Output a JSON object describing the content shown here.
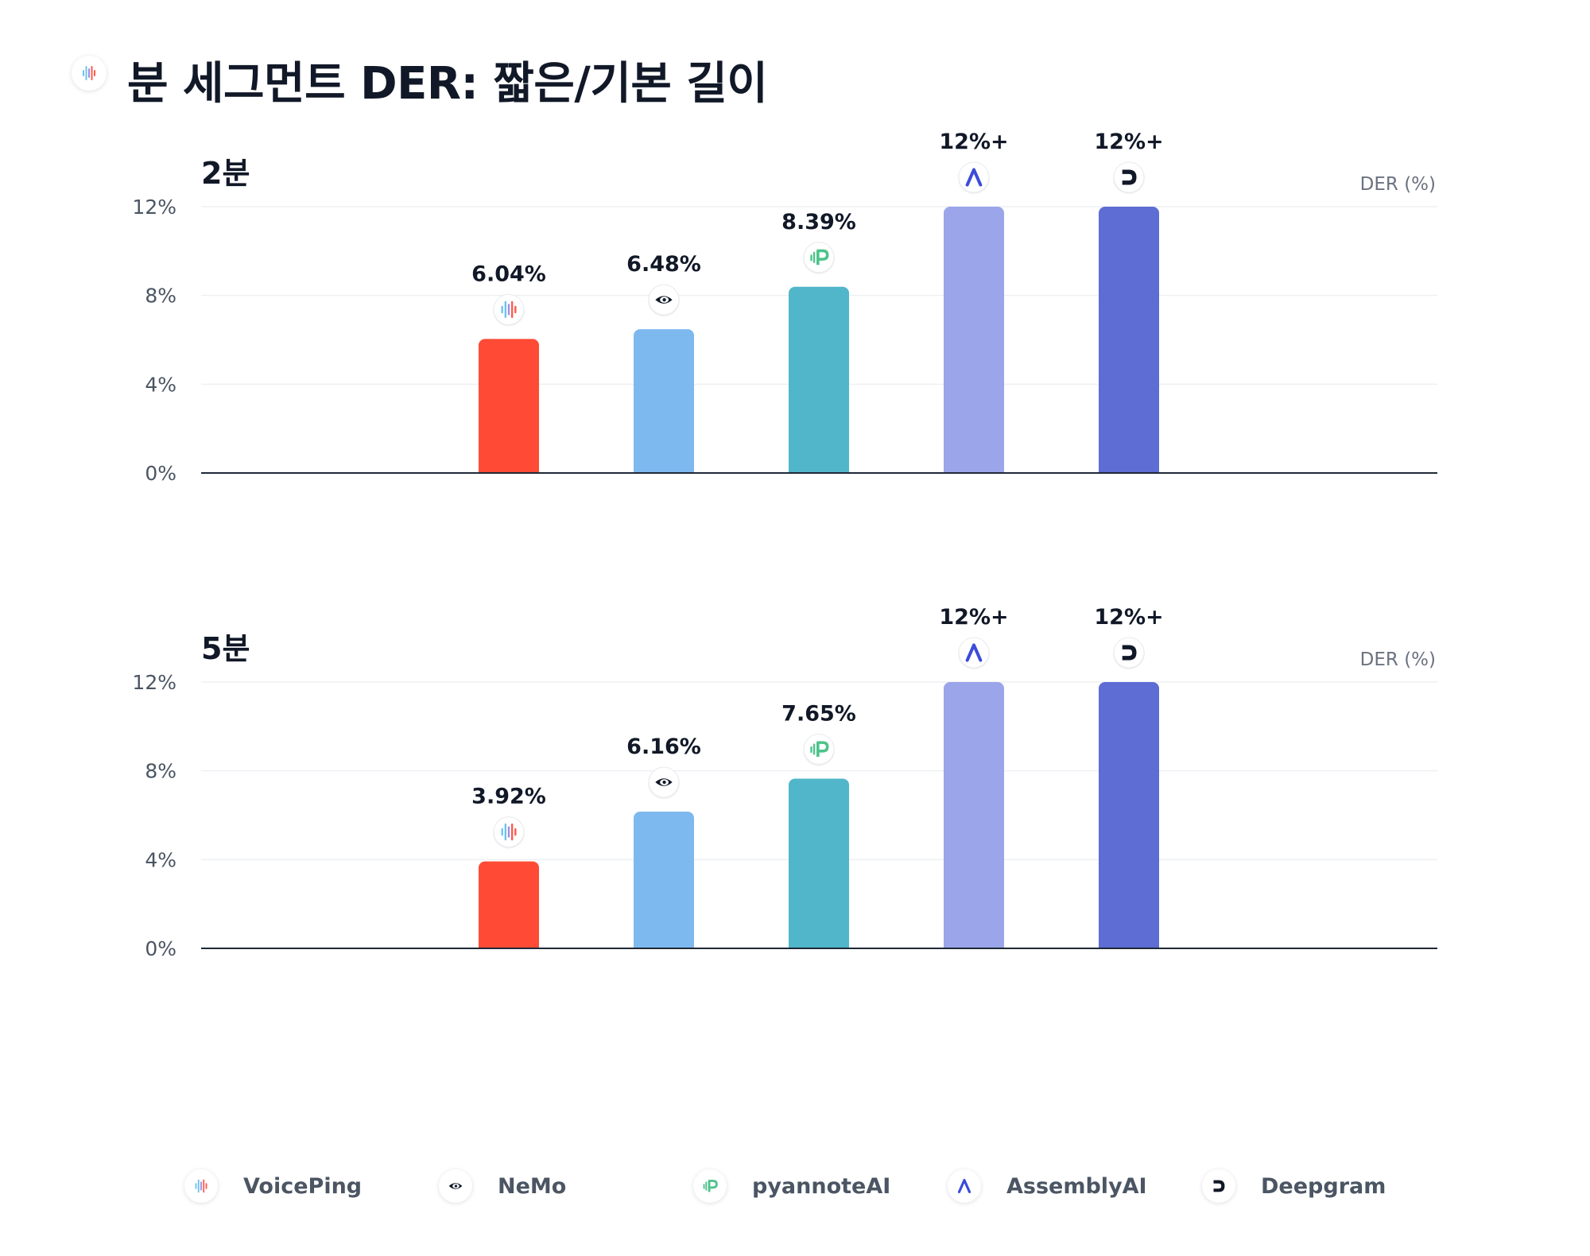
{
  "title": "분 세그먼트 DER: 짧은/기본 길이",
  "colors": {
    "VoicePing": "#ff4b35",
    "NeMo": "#7db9ef",
    "pyannoteAI": "#51b6c9",
    "AssemblyAI": "#9ba5ea",
    "Deepgram": "#5d6dd4",
    "axis": "#1f2937",
    "grid": "#eef0f3"
  },
  "icons": {
    "VoicePing": "voiceping-logo-icon",
    "NeMo": "nemo-eye-logo-icon",
    "pyannoteAI": "pyannoteai-logo-icon",
    "AssemblyAI": "assemblyai-logo-icon",
    "Deepgram": "deepgram-logo-icon"
  },
  "legend": [
    "VoicePing",
    "NeMo",
    "pyannoteAI",
    "AssemblyAI",
    "Deepgram"
  ],
  "chart_data": [
    {
      "type": "bar",
      "title": "2분",
      "ylabel": "DER (%)",
      "ylim": [
        0,
        12
      ],
      "yticks": [
        "0%",
        "4%",
        "8%",
        "12%"
      ],
      "ytick_values": [
        0,
        4,
        8,
        12
      ],
      "grid": true,
      "categories": [
        "VoicePing",
        "NeMo",
        "pyannoteAI",
        "AssemblyAI",
        "Deepgram"
      ],
      "values": [
        6.04,
        6.48,
        8.39,
        12,
        12
      ],
      "labels": [
        "6.04%",
        "6.48%",
        "8.39%",
        "12%+",
        "12%+"
      ]
    },
    {
      "type": "bar",
      "title": "5분",
      "ylabel": "DER (%)",
      "ylim": [
        0,
        12
      ],
      "yticks": [
        "0%",
        "4%",
        "8%",
        "12%"
      ],
      "ytick_values": [
        0,
        4,
        8,
        12
      ],
      "grid": true,
      "categories": [
        "VoicePing",
        "NeMo",
        "pyannoteAI",
        "AssemblyAI",
        "Deepgram"
      ],
      "values": [
        3.92,
        6.16,
        7.65,
        12,
        12
      ],
      "labels": [
        "3.92%",
        "6.16%",
        "7.65%",
        "12%+",
        "12%+"
      ]
    }
  ]
}
